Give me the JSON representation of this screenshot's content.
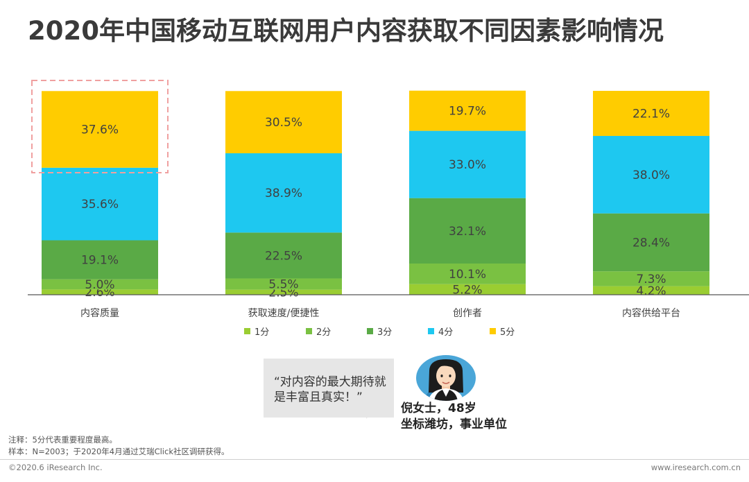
{
  "title": "2020年中国移动互联网用户内容获取不同因素影响情况",
  "chart_data": {
    "type": "bar",
    "stacked": true,
    "categories": [
      "内容质量",
      "获取速度/便捷性",
      "创作者",
      "内容供给平台"
    ],
    "series": [
      {
        "name": "1分",
        "color": "#9acd32",
        "values": [
          2.6,
          2.5,
          5.2,
          4.2
        ]
      },
      {
        "name": "2分",
        "color": "#7ac142",
        "values": [
          5.0,
          5.5,
          10.1,
          7.3
        ]
      },
      {
        "name": "3分",
        "color": "#5aaa46",
        "values": [
          19.1,
          22.5,
          32.1,
          28.4
        ]
      },
      {
        "name": "4分",
        "color": "#1ec8f0",
        "values": [
          35.6,
          38.9,
          33.0,
          38.0
        ]
      },
      {
        "name": "5分",
        "color": "#ffcc00",
        "values": [
          37.6,
          30.5,
          19.7,
          22.1
        ]
      }
    ],
    "ylim": [
      0,
      100
    ],
    "legend_position": "bottom",
    "highlight": {
      "category": "内容质量",
      "series": "5分",
      "style": "dashed-pink-box"
    }
  },
  "quote": {
    "text": "“对内容的最大期待就是丰富且真实！”",
    "name": "倪女士，48岁",
    "detail": "坐标潍坊，事业单位"
  },
  "notes": {
    "note1": "注释：5分代表重要程度最高。",
    "note2": "样本：N=2003；于2020年4月通过艾瑞Click社区调研获得。"
  },
  "footer": {
    "left": "©2020.6 iResearch Inc.",
    "right": "www.iresearch.com.cn"
  }
}
